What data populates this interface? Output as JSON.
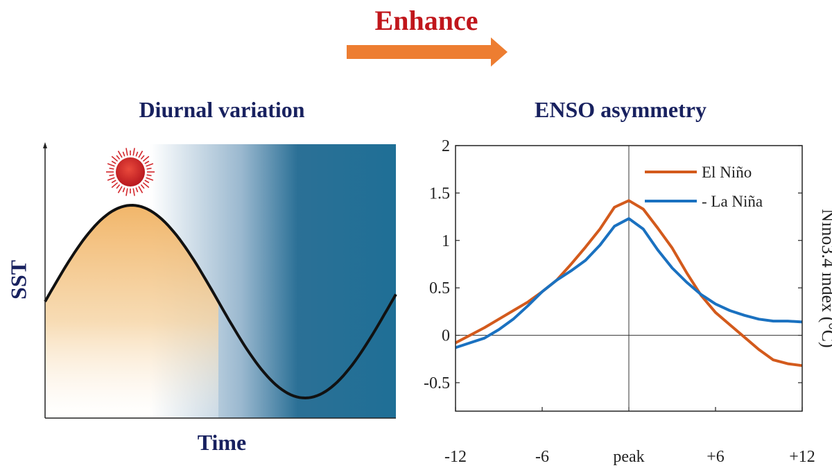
{
  "header": {
    "enhance_label": "Enhance",
    "arrow_color": "#ed7d31",
    "enhance_color": "#c0161b"
  },
  "left_panel": {
    "title": "Diurnal variation",
    "ylabel": "SST",
    "xlabel": "Time",
    "icons": [
      "sun-icon",
      "moon-icon"
    ],
    "colors": {
      "warm": "#f1b569",
      "night": "#1f6f96",
      "curve": "#111111",
      "sun": "#d2262b",
      "moon": "#f3a11c"
    }
  },
  "chart_data": {
    "type": "line",
    "title": "ENSO asymmetry",
    "xlabel": "",
    "ylabel": "Nino3.4 index (°C)",
    "x": [
      -12,
      -11,
      -10,
      -9,
      -8,
      -7,
      -6,
      -5,
      -4,
      -3,
      -2,
      -1,
      0,
      1,
      2,
      3,
      4,
      5,
      6,
      7,
      8,
      9,
      10,
      11,
      12
    ],
    "xticks": [
      -12,
      -6,
      0,
      6,
      12
    ],
    "xtick_labels": [
      "-12",
      "-6",
      "peak",
      "+6",
      "+12"
    ],
    "ylim": [
      -0.8,
      2
    ],
    "yticks": [
      -0.5,
      0,
      0.5,
      1,
      1.5,
      2
    ],
    "ytick_labels": [
      "-0.5",
      "0",
      "0.5",
      "1",
      "1.5",
      "2"
    ],
    "series": [
      {
        "name": "El Niño",
        "color": "#d35a1c",
        "values": [
          -0.08,
          0.0,
          0.08,
          0.17,
          0.26,
          0.35,
          0.46,
          0.58,
          0.75,
          0.93,
          1.12,
          1.35,
          1.42,
          1.33,
          1.13,
          0.92,
          0.66,
          0.42,
          0.24,
          0.11,
          -0.02,
          -0.15,
          -0.26,
          -0.3,
          -0.32
        ]
      },
      {
        "name": "- La Niña",
        "color": "#1a71c0",
        "values": [
          -0.13,
          -0.08,
          -0.03,
          0.06,
          0.17,
          0.31,
          0.46,
          0.58,
          0.68,
          0.79,
          0.95,
          1.15,
          1.23,
          1.12,
          0.9,
          0.71,
          0.56,
          0.43,
          0.33,
          0.26,
          0.21,
          0.17,
          0.15,
          0.15,
          0.14
        ]
      }
    ],
    "grid": false,
    "reference_lines": [
      "y=0",
      "x=peak"
    ],
    "legend_position": "top-right"
  }
}
